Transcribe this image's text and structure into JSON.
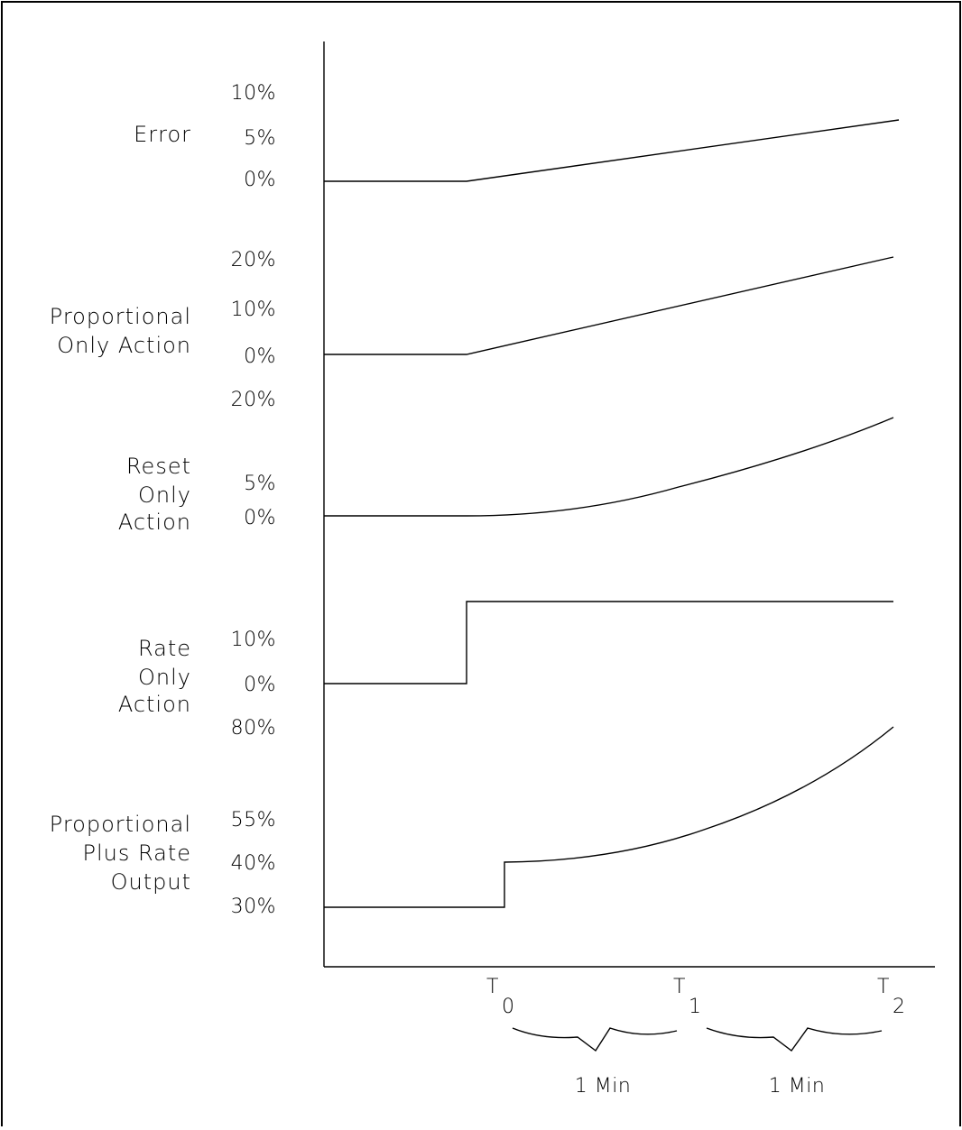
{
  "panels": [
    {
      "label_lines": [
        "Error"
      ],
      "ticks": [
        "10%",
        "5%",
        "0%"
      ]
    },
    {
      "label_lines": [
        "Proportional",
        "Only Action"
      ],
      "ticks": [
        "20%",
        "10%",
        "0%"
      ]
    },
    {
      "label_lines": [
        "Reset",
        "Only",
        "Action"
      ],
      "ticks": [
        "20%",
        "5%",
        "0%"
      ]
    },
    {
      "label_lines": [
        "Rate",
        "Only",
        "Action"
      ],
      "ticks": [
        "10%",
        "0%"
      ]
    },
    {
      "label_lines": [
        "Proportional",
        "Plus Rate",
        "Output"
      ],
      "ticks": [
        "80%",
        "55%",
        "40%",
        "30%"
      ]
    }
  ],
  "time_markers": [
    {
      "letter": "T",
      "subscript": "0"
    },
    {
      "letter": "T",
      "subscript": "1"
    },
    {
      "letter": "T",
      "subscript": "2"
    }
  ],
  "intervals": [
    "1 Min",
    "1 Min"
  ]
}
